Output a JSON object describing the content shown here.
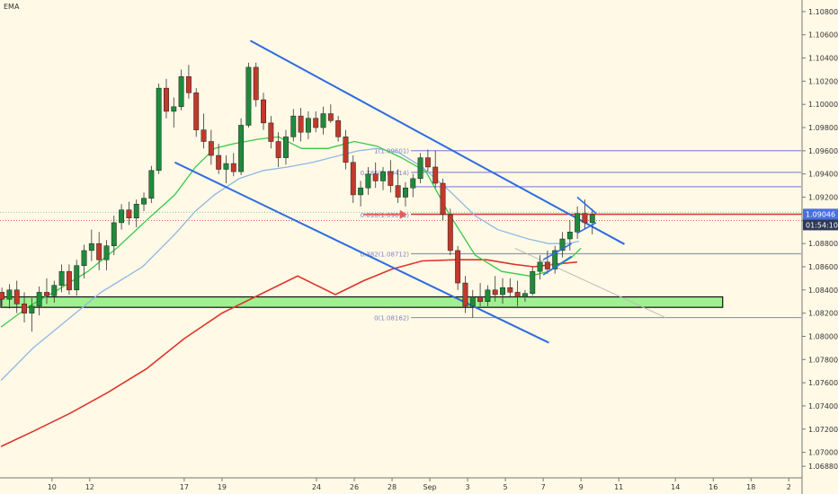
{
  "chart_data": {
    "type": "candlestick",
    "indicator_label": "EMA",
    "y_axis": {
      "ticks": [
        "1.10800",
        "1.10600",
        "1.10400",
        "1.10200",
        "1.10000",
        "1.09800",
        "1.09600",
        "1.09400",
        "1.09200",
        "1.09000",
        "1.08800",
        "1.08600",
        "1.08400",
        "1.08200",
        "1.08000",
        "1.07800",
        "1.07600",
        "1.07400",
        "1.07200",
        "1.07000",
        "1.06880"
      ],
      "current_price": "1.09046",
      "countdown": "01:54:10",
      "price_badge_color": "#4a6fe3",
      "countdown_badge_color": "#2f3a56",
      "ylim": [
        1.0678,
        1.109
      ]
    },
    "x_axis": {
      "ticks": [
        {
          "label": "10",
          "x": 10
        },
        {
          "label": "12",
          "x": 12
        },
        {
          "label": "17",
          "x": 17
        },
        {
          "label": "19",
          "x": 19
        },
        {
          "label": "24",
          "x": 24
        },
        {
          "label": "26",
          "x": 26
        },
        {
          "label": "28",
          "x": 28
        },
        {
          "label": "Sep",
          "x": 30
        },
        {
          "label": "3",
          "x": 32
        },
        {
          "label": "5",
          "x": 34
        },
        {
          "label": "7",
          "x": 36
        },
        {
          "label": "9",
          "x": 38
        },
        {
          "label": "11",
          "x": 40
        },
        {
          "label": "14",
          "x": 43
        },
        {
          "label": "16",
          "x": 45
        },
        {
          "label": "18",
          "x": 47
        },
        {
          "label": "2",
          "x": 49
        }
      ],
      "xlim": [
        7.25,
        49.7
      ]
    },
    "candles": [
      [
        1.0838,
        1.0842,
        1.0826,
        1.0832
      ],
      [
        1.0832,
        1.0845,
        1.0824,
        1.084
      ],
      [
        1.084,
        1.0848,
        1.082,
        1.0828
      ],
      [
        1.0828,
        1.0838,
        1.0812,
        1.082
      ],
      [
        1.082,
        1.0833,
        1.0804,
        1.0826
      ],
      [
        1.0826,
        1.0843,
        1.0818,
        1.0838
      ],
      [
        1.0838,
        1.085,
        1.0828,
        1.0835
      ],
      [
        1.0835,
        1.0848,
        1.0829,
        1.0844
      ],
      [
        1.0844,
        1.0862,
        1.0838,
        1.0856
      ],
      [
        1.0856,
        1.0862,
        1.0836,
        1.084
      ],
      [
        1.084,
        1.0866,
        1.0835,
        1.0861
      ],
      [
        1.0861,
        1.0879,
        1.085,
        1.0874
      ],
      [
        1.0874,
        1.0892,
        1.0865,
        1.088
      ],
      [
        1.088,
        1.089,
        1.0857,
        1.0866
      ],
      [
        1.0866,
        1.0883,
        1.0857,
        1.0878
      ],
      [
        1.0878,
        1.0904,
        1.087,
        1.0898
      ],
      [
        1.0898,
        1.0914,
        1.0892,
        1.0909
      ],
      [
        1.0909,
        1.0916,
        1.0896,
        1.0902
      ],
      [
        1.0902,
        1.0918,
        1.0894,
        1.0914
      ],
      [
        1.0914,
        1.0924,
        1.0908,
        1.0919
      ],
      [
        1.0919,
        1.0947,
        1.0915,
        1.0943
      ],
      [
        1.0943,
        1.1018,
        1.094,
        1.1014
      ],
      [
        1.1014,
        1.1022,
        1.0988,
        1.0994
      ],
      [
        1.0994,
        1.1006,
        1.098,
        1.0998
      ],
      [
        1.0998,
        1.103,
        1.0995,
        1.1024
      ],
      [
        1.1024,
        1.1034,
        1.1005,
        1.101
      ],
      [
        1.101,
        1.1014,
        1.0972,
        1.0978
      ],
      [
        1.0978,
        1.0992,
        1.0962,
        1.0968
      ],
      [
        1.0968,
        1.0978,
        1.0948,
        1.0956
      ],
      [
        1.0956,
        1.0966,
        1.094,
        1.0944
      ],
      [
        1.0944,
        1.0956,
        1.0932,
        1.0949
      ],
      [
        1.0949,
        1.0958,
        1.0938,
        1.0942
      ],
      [
        1.0942,
        1.0988,
        1.0939,
        1.0982
      ],
      [
        1.0982,
        1.1036,
        1.098,
        1.1032
      ],
      [
        1.1032,
        1.1036,
        1.0998,
        1.1004
      ],
      [
        1.1004,
        1.101,
        1.0978,
        1.0984
      ],
      [
        1.0984,
        1.099,
        1.0962,
        1.0968
      ],
      [
        1.0968,
        1.0976,
        1.0946,
        1.0954
      ],
      [
        1.0954,
        1.0978,
        1.0948,
        1.0972
      ],
      [
        1.0972,
        1.0996,
        1.0968,
        1.099
      ],
      [
        1.099,
        1.0997,
        1.0968,
        1.0976
      ],
      [
        1.0976,
        1.0994,
        1.097,
        1.0988
      ],
      [
        1.0988,
        1.0994,
        1.0976,
        1.098
      ],
      [
        1.098,
        1.0998,
        1.0974,
        1.0992
      ],
      [
        1.0992,
        1.1,
        1.0984,
        1.0986
      ],
      [
        1.0986,
        1.099,
        1.0968,
        1.0972
      ],
      [
        1.0972,
        1.0978,
        1.0944,
        1.095
      ],
      [
        1.095,
        1.0956,
        1.0915,
        1.0922
      ],
      [
        1.0922,
        1.0934,
        1.0912,
        1.0928
      ],
      [
        1.0928,
        1.0946,
        1.0922,
        1.094
      ],
      [
        1.094,
        1.095,
        1.0928,
        1.0934
      ],
      [
        1.0934,
        1.0946,
        1.0926,
        1.0942
      ],
      [
        1.0942,
        1.0952,
        1.0924,
        1.093
      ],
      [
        1.093,
        1.0944,
        1.0915,
        1.092
      ],
      [
        1.092,
        1.0933,
        1.0912,
        1.0928
      ],
      [
        1.0928,
        1.094,
        1.092,
        1.0936
      ],
      [
        1.0936,
        1.0958,
        1.0932,
        1.0954
      ],
      [
        1.0954,
        1.0961,
        1.0942,
        1.0946
      ],
      [
        1.0946,
        1.096,
        1.0928,
        1.0932
      ],
      [
        1.0932,
        1.0936,
        1.09,
        1.0905
      ],
      [
        1.0905,
        1.091,
        1.087,
        1.0874
      ],
      [
        1.0874,
        1.0878,
        1.084,
        1.0846
      ],
      [
        1.0846,
        1.0852,
        1.082,
        1.0826
      ],
      [
        1.0826,
        1.084,
        1.0816,
        1.0834
      ],
      [
        1.0834,
        1.0846,
        1.0826,
        1.083
      ],
      [
        1.083,
        1.0844,
        1.0826,
        1.084
      ],
      [
        1.084,
        1.0852,
        1.083,
        1.0836
      ],
      [
        1.0836,
        1.085,
        1.0828,
        1.0842
      ],
      [
        1.0842,
        1.085,
        1.0834,
        1.0838
      ],
      [
        1.0838,
        1.0848,
        1.0826,
        1.0834
      ],
      [
        1.0834,
        1.084,
        1.083,
        1.0837
      ],
      [
        1.0837,
        1.086,
        1.0835,
        1.0856
      ],
      [
        1.0856,
        1.087,
        1.0849,
        1.0864
      ],
      [
        1.0864,
        1.0874,
        1.0854,
        1.0858
      ],
      [
        1.0858,
        1.0878,
        1.0854,
        1.0874
      ],
      [
        1.0874,
        1.089,
        1.0868,
        1.0884
      ],
      [
        1.0884,
        1.09,
        1.0874,
        1.089
      ],
      [
        1.089,
        1.0912,
        1.0884,
        1.0906
      ],
      [
        1.0906,
        1.0918,
        1.0892,
        1.0898
      ],
      [
        1.0898,
        1.091,
        1.0888,
        1.0905
      ]
    ],
    "ema_fast": [
      [
        7.3,
        1.0808
      ],
      [
        8.8,
        1.0826
      ],
      [
        10.3,
        1.084
      ],
      [
        11.9,
        1.0856
      ],
      [
        13.5,
        1.0877
      ],
      [
        15.0,
        1.09
      ],
      [
        16.5,
        1.0922
      ],
      [
        17.6,
        1.0946
      ],
      [
        18.6,
        1.0962
      ],
      [
        19.6,
        1.0966
      ],
      [
        20.9,
        1.097
      ],
      [
        22.0,
        1.0972
      ],
      [
        23.2,
        1.0962
      ],
      [
        24.6,
        1.0962
      ],
      [
        26.0,
        1.0968
      ],
      [
        27.2,
        1.0964
      ],
      [
        28.5,
        1.0954
      ],
      [
        29.8,
        1.0942
      ],
      [
        31.0,
        1.0906
      ],
      [
        32.4,
        1.087
      ],
      [
        33.8,
        1.0856
      ],
      [
        35.3,
        1.0852
      ],
      [
        36.3,
        1.0856
      ],
      [
        37.5,
        1.0868
      ],
      [
        38.0,
        1.0876
      ]
    ],
    "ema_mid": [
      [
        7.3,
        1.0762
      ],
      [
        9.0,
        1.079
      ],
      [
        10.8,
        1.0814
      ],
      [
        12.6,
        1.0838
      ],
      [
        14.8,
        1.086
      ],
      [
        16.5,
        1.0888
      ],
      [
        17.6,
        1.0908
      ],
      [
        18.6,
        1.0922
      ],
      [
        19.9,
        1.0936
      ],
      [
        21.2,
        1.0943
      ],
      [
        22.5,
        1.0946
      ],
      [
        23.8,
        1.095
      ],
      [
        25.0,
        1.0955
      ],
      [
        26.2,
        1.096
      ],
      [
        27.2,
        1.0962
      ],
      [
        28.4,
        1.0958
      ],
      [
        29.6,
        1.0946
      ],
      [
        31.0,
        1.0926
      ],
      [
        32.4,
        1.0904
      ],
      [
        33.6,
        1.0892
      ],
      [
        35.2,
        1.0884
      ],
      [
        36.3,
        1.088
      ],
      [
        37.3,
        1.088
      ],
      [
        37.9,
        1.0882
      ]
    ],
    "ema_slow": [
      [
        7.3,
        1.0705
      ],
      [
        9.0,
        1.0718
      ],
      [
        11.0,
        1.0734
      ],
      [
        13.0,
        1.0752
      ],
      [
        15.0,
        1.0772
      ],
      [
        17.0,
        1.0798
      ],
      [
        19.0,
        1.082
      ],
      [
        21.0,
        1.0836
      ],
      [
        23.0,
        1.0852
      ],
      [
        25.0,
        1.0836
      ],
      [
        26.5,
        1.0848
      ],
      [
        28.0,
        1.0858
      ],
      [
        29.6,
        1.0865
      ],
      [
        31.4,
        1.0866
      ],
      [
        33.0,
        1.0866
      ],
      [
        34.5,
        1.0862
      ],
      [
        35.5,
        1.086
      ],
      [
        36.5,
        1.0862
      ],
      [
        37.8,
        1.0864
      ]
    ],
    "fib_levels": [
      {
        "label": "1(1.09601)",
        "price": 1.09601
      },
      {
        "label": "0.786(1.09414)",
        "price": 1.09414
      },
      {
        "label": "0.618(1.09051)",
        "price": 1.09051
      },
      {
        "label": "0.382(1.08712)",
        "price": 1.08712
      },
      {
        "label": "0(1.08162)",
        "price": 1.08162
      }
    ],
    "fib_levels_extra": [
      {
        "price": 1.0929
      }
    ],
    "support_zone": {
      "from": 1.0834,
      "to": 1.0825,
      "x_start": 7.25,
      "x_end": 45.5,
      "color": "#9ff08e"
    },
    "horizontal_red_line": 1.09046,
    "channel_upper": {
      "from": [
        20.5,
        1.1055
      ],
      "to": [
        40.3,
        1.08795
      ]
    },
    "channel_lower": {
      "from": [
        16.5,
        1.095
      ],
      "to": [
        36.3,
        1.07945
      ]
    },
    "arrow": {
      "x1": 26.5,
      "x2": 28.8,
      "price": 1.09051,
      "color": "#e06060"
    },
    "small_flag_channel": {
      "upper": [
        [
          36.0,
          1.0866
        ],
        [
          37.5,
          1.088
        ]
      ],
      "lower": [
        [
          36.0,
          1.0853
        ],
        [
          37.5,
          1.0869
        ]
      ],
      "color": "#2e6be0"
    },
    "pennant": {
      "upper": [
        [
          37.8,
          1.092
        ],
        [
          38.8,
          1.0906
        ]
      ],
      "lower": [
        [
          37.8,
          1.0889
        ],
        [
          38.8,
          1.0898
        ]
      ],
      "color": "#2e6be0"
    },
    "gray_projection": {
      "from": [
        34.5,
        1.0876
      ],
      "to": [
        42.5,
        1.0816
      ]
    },
    "colors": {
      "bull": "#1f8a3b",
      "bear": "#c0392b",
      "ema_fast": "#3ac84a",
      "ema_mid": "#8fb8e6",
      "ema_slow": "#e0342a",
      "channel": "#2e6be0",
      "fib": "#8e8edb",
      "fib_text": "#8080c0",
      "red_line": "#e0342a",
      "dotted_green": "#7fbf7f",
      "axis_text": "#333333"
    }
  }
}
